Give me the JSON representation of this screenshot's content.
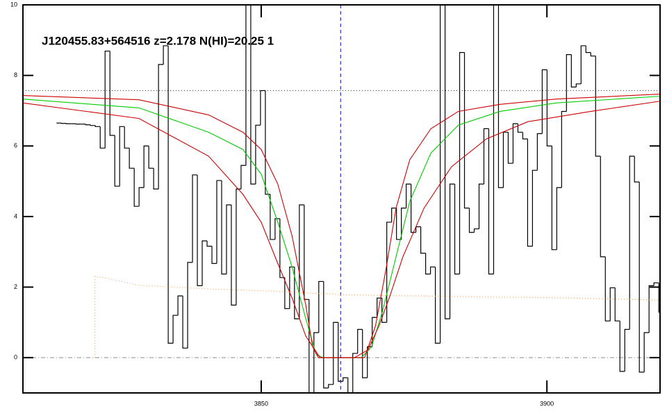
{
  "chart_data": {
    "type": "spectrum",
    "title": "J120455.83+564516 z=2.178 N(HI)=20.25 1",
    "xlim": [
      3808.3,
      3919.8
    ],
    "ylim": [
      -1,
      10
    ],
    "xticks": [
      3850,
      3900
    ],
    "yticks": [
      0,
      2,
      4,
      6,
      8,
      10
    ],
    "series": [
      {
        "name": "flux",
        "style": "step",
        "color": "#000000",
        "x": [
          3814.6,
          3815.45,
          3816.3,
          3817.15,
          3818.0,
          3818.85,
          3819.7,
          3820.55,
          3821.4,
          3822.25,
          3823.1,
          3823.95,
          3824.8,
          3825.65,
          3826.5,
          3827.35,
          3828.2,
          3829.05,
          3829.9,
          3830.75,
          3831.6,
          3832.45,
          3833.3,
          3834.15,
          3835.0,
          3835.85,
          3836.7,
          3837.55,
          3838.4,
          3839.25,
          3840.1,
          3840.95,
          3841.8,
          3842.65,
          3843.5,
          3844.35,
          3845.2,
          3846.05,
          3846.9,
          3847.75,
          3848.6,
          3849.45,
          3850.3,
          3851.15,
          3852.0,
          3852.85,
          3853.7,
          3854.55,
          3855.4,
          3856.25,
          3857.1,
          3857.95,
          3858.8,
          3859.65,
          3860.5,
          3861.35,
          3862.2,
          3863.05,
          3863.9,
          3864.75,
          3865.6,
          3866.45,
          3867.3,
          3868.15,
          3869.0,
          3869.85,
          3870.7,
          3871.55,
          3872.4,
          3873.25,
          3874.1,
          3874.95,
          3875.8,
          3876.65,
          3877.5,
          3878.35,
          3879.2,
          3880.05,
          3880.9,
          3881.75,
          3882.6,
          3883.45,
          3884.3,
          3885.15,
          3886.0,
          3886.85,
          3887.7,
          3888.55,
          3889.4,
          3890.25,
          3891.1,
          3891.95,
          3892.8,
          3893.65,
          3894.5,
          3895.35,
          3896.2,
          3897.05,
          3897.9,
          3898.75,
          3899.6,
          3900.45,
          3901.3,
          3902.15,
          3903.0,
          3903.85,
          3904.7,
          3905.55,
          3906.4,
          3907.25,
          3908.1,
          3908.95,
          3909.8,
          3910.65,
          3911.5,
          3912.35,
          3913.2,
          3914.05,
          3914.9,
          3915.75,
          3916.6,
          3917.45,
          3918.3,
          3919.15,
          3920.0
        ],
        "values": [
          6.65,
          6.64,
          6.63,
          6.63,
          6.62,
          6.62,
          6.6,
          6.58,
          6.55,
          5.94,
          8.69,
          6.3,
          4.86,
          6.55,
          5.94,
          5.37,
          4.29,
          4.82,
          6.0,
          5.37,
          4.78,
          8.31,
          8.84,
          0.41,
          1.2,
          1.75,
          0.27,
          2.7,
          5.18,
          2.04,
          3.31,
          3.16,
          2.67,
          5.02,
          2.37,
          4.33,
          1.49,
          4.78,
          5.45,
          10.5,
          4.92,
          6.59,
          7.57,
          4.63,
          3.35,
          3.94,
          2.27,
          1.39,
          2.57,
          1.1,
          4.33,
          1.65,
          -1.2,
          0.71,
          2.16,
          -0.86,
          -0.76,
          1.0,
          -0.67,
          -0.57,
          -1.2,
          0.12,
          0.8,
          -0.57,
          0.31,
          1.14,
          1.69,
          1.0,
          3.84,
          4.24,
          3.35,
          4.24,
          4.92,
          3.55,
          3.71,
          2.96,
          2.37,
          2.57,
          0.41,
          10.5,
          1.1,
          4.92,
          2.37,
          8.65,
          4.24,
          3.55,
          3.65,
          4.92,
          6.49,
          2.37,
          10.5,
          4.82,
          6.39,
          5.51,
          6.63,
          6.39,
          6.2,
          3.16,
          5.31,
          6.35,
          8.16,
          6.0,
          3.06,
          4.82,
          6.98,
          8.59,
          7.67,
          7.76,
          8.84,
          8.65,
          8.55,
          5.71,
          2.86,
          1.04,
          1.98,
          1.04,
          -0.39,
          0.8,
          5.71,
          4.98,
          -0.41,
          0.71,
          2.04,
          2.12,
          1.29
        ]
      },
      {
        "name": "model",
        "style": "line",
        "color": "#00cc00",
        "x": [
          3808.3,
          3828.6,
          3840.8,
          3846.8,
          3850.0,
          3852.9,
          3855.4,
          3857.8,
          3859.6,
          3860.8,
          3867.5,
          3869.3,
          3871.2,
          3873.6,
          3876.0,
          3879.7,
          3884.5,
          3891.8,
          3901.6,
          3919.8
        ],
        "values": [
          7.33,
          7.08,
          6.39,
          5.9,
          5.2,
          3.84,
          2.57,
          1.1,
          0.1,
          0,
          0,
          0.3,
          1.3,
          2.86,
          4.43,
          5.8,
          6.59,
          6.98,
          7.22,
          7.41
        ]
      },
      {
        "name": "model-upper",
        "style": "line",
        "color": "#cc0000",
        "x": [
          3808.3,
          3828.6,
          3840.8,
          3846.8,
          3850.0,
          3852.9,
          3855.4,
          3857.8,
          3859.0,
          3860.0,
          3868.1,
          3870.0,
          3871.8,
          3873.6,
          3876.0,
          3879.7,
          3884.5,
          3891.8,
          3901.6,
          3919.8
        ],
        "values": [
          7.43,
          7.31,
          6.88,
          6.39,
          5.9,
          4.92,
          3.45,
          1.49,
          0.31,
          0,
          0,
          0.9,
          2.47,
          4.24,
          5.61,
          6.49,
          6.98,
          7.18,
          7.33,
          7.47
        ]
      },
      {
        "name": "model-lower",
        "style": "line",
        "color": "#cc0000",
        "x": [
          3808.3,
          3828.6,
          3840.8,
          3846.8,
          3850.0,
          3852.9,
          3855.4,
          3857.8,
          3860.3,
          3866.3,
          3868.7,
          3870.6,
          3872.4,
          3874.8,
          3878.5,
          3883.3,
          3889.4,
          3896.7,
          3907.7,
          3919.8
        ],
        "values": [
          7.22,
          6.78,
          5.71,
          4.63,
          3.84,
          2.67,
          1.69,
          0.61,
          0,
          0,
          0.22,
          0.9,
          1.69,
          2.86,
          4.24,
          5.41,
          6.2,
          6.69,
          6.98,
          7.27
        ]
      },
      {
        "name": "error",
        "style": "dotted",
        "color": "#e8a060",
        "x": [
          3820.9,
          3820.9,
          3823.0,
          3828.6,
          3840.8,
          3853.0,
          3865.2,
          3877.3,
          3889.5,
          3901.6,
          3919.8
        ],
        "values": [
          0,
          2.3,
          2.25,
          2.05,
          1.95,
          1.88,
          1.78,
          1.75,
          1.72,
          1.7,
          1.63
        ]
      }
    ],
    "vlines": [
      {
        "value": 3863.9,
        "color": "#0000cc",
        "style": "dashed"
      }
    ],
    "hlines": [
      {
        "value": 7.57,
        "color": "#9900cc",
        "style": "dotted"
      },
      {
        "value": 0,
        "color": "#999999",
        "style": "dashdot"
      }
    ]
  }
}
